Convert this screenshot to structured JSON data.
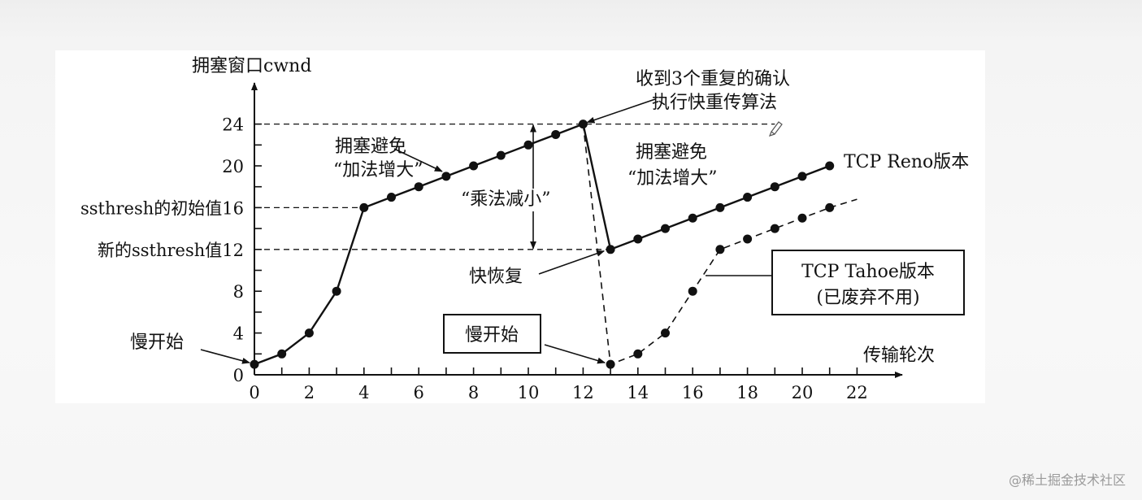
{
  "chart_data": {
    "type": "line",
    "ylabel": "拥塞窗口cwnd",
    "xlabel": "传输轮次",
    "xlim": [
      0,
      22
    ],
    "ylim": [
      0,
      24
    ],
    "x_ticks": [
      0,
      2,
      4,
      6,
      8,
      10,
      12,
      14,
      16,
      18,
      20,
      22
    ],
    "y_ticks": [
      {
        "value": 0,
        "label": "0"
      },
      {
        "value": 4,
        "label": "4"
      },
      {
        "value": 8,
        "label": "8"
      },
      {
        "value": 12,
        "label": "新的ssthresh值12"
      },
      {
        "value": 16,
        "label": "ssthresh的初始值16"
      },
      {
        "value": 20,
        "label": "20"
      },
      {
        "value": 24,
        "label": "24"
      }
    ],
    "series": [
      {
        "name": "TCP Reno版本",
        "style": "solid",
        "points": [
          [
            0,
            1
          ],
          [
            1,
            2
          ],
          [
            2,
            4
          ],
          [
            3,
            8
          ],
          [
            4,
            16
          ],
          [
            5,
            17
          ],
          [
            6,
            18
          ],
          [
            7,
            19
          ],
          [
            8,
            20
          ],
          [
            9,
            21
          ],
          [
            10,
            22
          ],
          [
            11,
            23
          ],
          [
            12,
            24
          ],
          [
            13,
            12
          ],
          [
            14,
            13
          ],
          [
            15,
            14
          ],
          [
            16,
            15
          ],
          [
            17,
            16
          ],
          [
            18,
            17
          ],
          [
            19,
            18
          ],
          [
            20,
            19
          ],
          [
            21,
            20
          ]
        ]
      },
      {
        "name": "TCP Tahoe版本",
        "style": "dashed",
        "points": [
          [
            12,
            24
          ],
          [
            13,
            1
          ],
          [
            14,
            2
          ],
          [
            15,
            4
          ],
          [
            16,
            8
          ],
          [
            17,
            12
          ],
          [
            18,
            13
          ],
          [
            19,
            14
          ],
          [
            20,
            15
          ],
          [
            21,
            16
          ]
        ],
        "extend_to": [
          22,
          16.8
        ]
      }
    ],
    "reference_lines": [
      {
        "y": 24,
        "from_x": 0,
        "to_x": 19
      },
      {
        "y": 16,
        "from_x": 0,
        "to_x": 4
      },
      {
        "y": 12,
        "from_x": 0,
        "to_x": 13
      }
    ],
    "annotations": {
      "congestion_avoid_1": [
        "拥塞避免",
        "“加法增大”"
      ],
      "congestion_avoid_2": [
        "拥塞避免",
        "“加法增大”"
      ],
      "multiplicative_decrease": "“乘法减小”",
      "three_dup_acks": [
        "收到3个重复的确认",
        "执行快重传算法"
      ],
      "fast_recovery": "快恢复",
      "slow_start_1": "慢开始",
      "slow_start_2": "慢开始",
      "reno_label": "TCP Reno版本",
      "tahoe_label": [
        "TCP Tahoe版本",
        "(已废弃不用)"
      ]
    },
    "grid": false,
    "legend": "none"
  },
  "watermark": "@稀土掘金技术社区"
}
